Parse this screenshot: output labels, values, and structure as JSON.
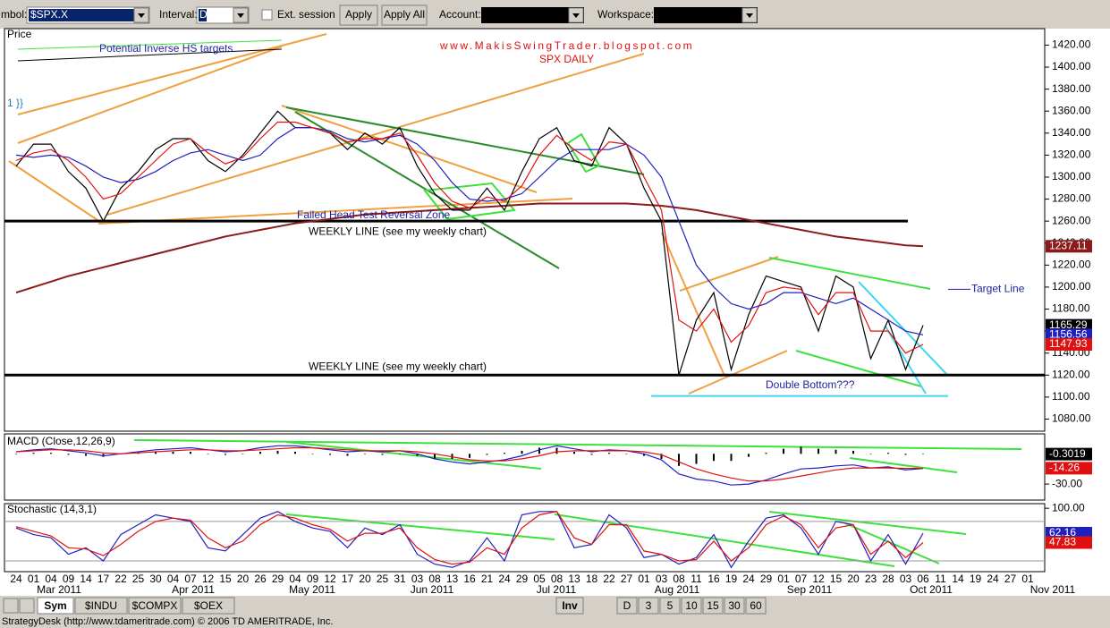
{
  "toolbar": {
    "symbol_label": "mbol:",
    "symbol": "$SPX.X",
    "interval_label": "Interval:",
    "interval": "D",
    "ext_session": "Ext. session",
    "apply": "Apply",
    "apply_all": "Apply All",
    "account_label": "Account:",
    "workspace_label": "Workspace:"
  },
  "chart_data": [
    {
      "type": "line",
      "title": "Price",
      "categories": [
        "24",
        "01",
        "04",
        "09",
        "14",
        "17",
        "22",
        "25",
        "30",
        "04",
        "07",
        "12",
        "15",
        "20",
        "26",
        "29",
        "04",
        "09",
        "12",
        "17",
        "20",
        "25",
        "31",
        "03",
        "08",
        "13",
        "16",
        "21",
        "24",
        "29",
        "05",
        "08",
        "13",
        "18",
        "22",
        "27",
        "01",
        "03",
        "08",
        "11",
        "16",
        "19",
        "24",
        "29",
        "01",
        "07",
        "12",
        "15",
        "20",
        "23",
        "28",
        "03",
        "06",
        "11",
        "14",
        "19",
        "24",
        "27",
        "01"
      ],
      "month_labels": [
        "Mar 2011",
        "Apr 2011",
        "May 2011",
        "Jun 2011",
        "Jul 2011",
        "Aug 2011",
        "Sep 2011",
        "Oct 2011",
        "Nov 2011"
      ],
      "ylim": [
        1069,
        1435
      ],
      "yticks": [
        {
          "value": 1080,
          "label": "1080.00"
        },
        {
          "value": 1100,
          "label": "1100.00"
        },
        {
          "value": 1120,
          "label": "1120.00"
        },
        {
          "value": 1140,
          "label": "1140.00"
        },
        {
          "value": 1160,
          "label": "1160.00"
        },
        {
          "value": 1180,
          "label": "1180.00"
        },
        {
          "value": 1200,
          "label": "1200.00"
        },
        {
          "value": 1220,
          "label": "1220.00"
        },
        {
          "value": 1240,
          "label": "1240.00"
        },
        {
          "value": 1260,
          "label": "1260.00"
        },
        {
          "value": 1280,
          "label": "1280.00"
        },
        {
          "value": 1300,
          "label": "1300.00"
        },
        {
          "value": 1320,
          "label": "1320.00"
        },
        {
          "value": 1340,
          "label": "1340.00"
        },
        {
          "value": 1360,
          "label": "1360.00"
        },
        {
          "value": 1380,
          "label": "1380.00"
        },
        {
          "value": 1400,
          "label": "1400.00"
        },
        {
          "value": 1420,
          "label": "1420.00"
        }
      ],
      "series": [
        {
          "color": "#8b1a1a",
          "label_last": true,
          "values": [
            1195,
            1200,
            1205,
            1210,
            1214,
            1218,
            1222,
            1226,
            1230,
            1234,
            1238,
            1242,
            1246,
            1249,
            1252,
            1255,
            1258,
            1260,
            1262,
            1264,
            1266,
            1267,
            1268,
            1269,
            1270,
            1271,
            1272,
            1273,
            1274,
            1275,
            1276,
            1276,
            1276,
            1276,
            1276,
            1276,
            1275,
            1274,
            1272,
            1270,
            1267,
            1264,
            1261,
            1258,
            1255,
            1252,
            1249,
            1246,
            1244,
            1242,
            1240,
            1238,
            1237.11,
            null,
            null,
            null,
            null,
            null,
            null
          ]
        },
        {
          "color": "#000000",
          "label_last": true,
          "values": [
            1310,
            1330,
            1330,
            1305,
            1290,
            1260,
            1290,
            1305,
            1325,
            1335,
            1335,
            1315,
            1305,
            1320,
            1340,
            1360,
            1345,
            1345,
            1340,
            1325,
            1340,
            1330,
            1345,
            1310,
            1285,
            1270,
            1270,
            1290,
            1270,
            1305,
            1335,
            1345,
            1315,
            1310,
            1345,
            1330,
            1290,
            1260,
            1120,
            1170,
            1195,
            1125,
            1175,
            1210,
            1205,
            1200,
            1160,
            1210,
            1200,
            1135,
            1170,
            1125,
            1165.29,
            null,
            null,
            null,
            null,
            null,
            null
          ]
        },
        {
          "color": "#1f1fbf",
          "label_last": true,
          "values": [
            1320,
            1318,
            1320,
            1318,
            1310,
            1300,
            1295,
            1298,
            1305,
            1315,
            1322,
            1325,
            1320,
            1315,
            1320,
            1335,
            1345,
            1345,
            1342,
            1335,
            1332,
            1335,
            1338,
            1330,
            1315,
            1295,
            1280,
            1278,
            1280,
            1285,
            1300,
            1315,
            1325,
            1325,
            1325,
            1330,
            1320,
            1300,
            1260,
            1220,
            1200,
            1185,
            1180,
            1185,
            1195,
            1195,
            1190,
            1185,
            1190,
            1180,
            1170,
            1160,
            1156.56,
            null,
            null,
            null,
            null,
            null,
            null
          ]
        },
        {
          "color": "#e01010",
          "label_last": true,
          "values": [
            1315,
            1322,
            1325,
            1315,
            1300,
            1280,
            1285,
            1300,
            1315,
            1330,
            1335,
            1322,
            1312,
            1318,
            1335,
            1350,
            1350,
            1345,
            1340,
            1332,
            1335,
            1335,
            1340,
            1320,
            1295,
            1278,
            1272,
            1282,
            1278,
            1292,
            1320,
            1338,
            1325,
            1315,
            1332,
            1330,
            1300,
            1270,
            1170,
            1160,
            1180,
            1150,
            1165,
            1195,
            1200,
            1198,
            1175,
            1195,
            1195,
            1160,
            1160,
            1140,
            1147.93,
            null,
            null,
            null,
            null,
            null,
            null
          ]
        }
      ],
      "hlines": [
        {
          "value": 1260,
          "color": "#000000",
          "label": "WEEKLY LINE (see my weekly chart)"
        },
        {
          "value": 1120,
          "color": "#000000",
          "label": "WEEKLY LINE (see my weekly chart)"
        },
        {
          "value": 1101,
          "color": "#40d8f0",
          "label": "Double Bottom???"
        },
        {
          "value": 1198,
          "color": "#1f1f9f",
          "label": "Target Line"
        }
      ],
      "annotations": [
        "www.MakisSwingTrader.blogspot.com",
        "SPX DAILY",
        "Potential Inverse HS targets",
        "Failed Head Test Reversal Zone",
        "1 }}"
      ]
    },
    {
      "type": "macd",
      "title": "MACD (Close,12,26,9)",
      "ylim": [
        -45,
        18
      ],
      "yticks": [
        {
          "value": -30,
          "label": "-30.00"
        }
      ],
      "series": [
        {
          "color": "#1f1fbf",
          "values": [
            2,
            4,
            5,
            3,
            1,
            -2,
            0,
            2,
            4,
            5,
            6,
            4,
            2,
            3,
            6,
            8,
            8,
            6,
            4,
            2,
            3,
            2,
            3,
            0,
            -5,
            -8,
            -10,
            -8,
            -6,
            -2,
            4,
            8,
            5,
            2,
            4,
            3,
            0,
            -6,
            -20,
            -25,
            -27,
            -31,
            -30,
            -26,
            -20,
            -15,
            -14,
            -12,
            -11,
            -14,
            -13,
            -16,
            -14.56,
            null,
            null,
            null,
            null,
            null,
            null
          ]
        },
        {
          "color": "#e01010",
          "label_last": true,
          "values": [
            2,
            3,
            4,
            4,
            3,
            1,
            0,
            1,
            2,
            3,
            4,
            4,
            3,
            3,
            4,
            5,
            6,
            6,
            5,
            4,
            3,
            3,
            3,
            2,
            0,
            -3,
            -6,
            -7,
            -7,
            -5,
            -2,
            2,
            3,
            3,
            3,
            3,
            2,
            -1,
            -8,
            -15,
            -20,
            -24,
            -27,
            -27,
            -25,
            -22,
            -19,
            -16,
            -14,
            -14,
            -14,
            -14.5,
            -14.26,
            null,
            null,
            null,
            null,
            null,
            null
          ]
        }
      ],
      "histogram": {
        "color": "#000000",
        "label_last": true,
        "values": [
          0,
          1,
          1,
          -1,
          -2,
          -3,
          0,
          1,
          2,
          2,
          2,
          0,
          -1,
          0,
          2,
          3,
          2,
          0,
          -1,
          -2,
          0,
          -1,
          0,
          -2,
          -5,
          -5,
          -4,
          -1,
          1,
          3,
          6,
          6,
          2,
          -1,
          1,
          0,
          -2,
          -5,
          -12,
          -10,
          -7,
          -7,
          -3,
          1,
          5,
          7,
          5,
          4,
          3,
          0,
          1,
          -1,
          -0.3019,
          null,
          null,
          null,
          null,
          null,
          null
        ]
      }
    },
    {
      "type": "line",
      "title": "Stochastic (14,3,1)",
      "ylim": [
        5,
        107
      ],
      "yticks": [
        {
          "value": 100,
          "label": "100.00"
        }
      ],
      "levels": [
        80,
        20
      ],
      "series": [
        {
          "color": "#1f1fbf",
          "label_last": true,
          "values": [
            70,
            60,
            55,
            30,
            40,
            20,
            60,
            75,
            90,
            85,
            80,
            40,
            35,
            60,
            85,
            95,
            80,
            70,
            65,
            40,
            70,
            60,
            75,
            30,
            15,
            10,
            20,
            55,
            20,
            90,
            95,
            95,
            40,
            45,
            90,
            70,
            25,
            30,
            15,
            25,
            60,
            10,
            50,
            85,
            90,
            70,
            30,
            80,
            75,
            20,
            60,
            15,
            62.16,
            null,
            null,
            null,
            null,
            null,
            null
          ]
        },
        {
          "color": "#e01010",
          "label_last": true,
          "values": [
            72,
            65,
            58,
            40,
            38,
            28,
            45,
            65,
            80,
            85,
            82,
            55,
            40,
            50,
            75,
            90,
            85,
            75,
            68,
            50,
            62,
            62,
            70,
            40,
            22,
            15,
            18,
            40,
            30,
            70,
            90,
            95,
            55,
            45,
            75,
            75,
            35,
            30,
            20,
            22,
            50,
            20,
            40,
            75,
            88,
            75,
            40,
            70,
            75,
            30,
            50,
            25,
            47.83,
            null,
            null,
            null,
            null,
            null,
            null
          ]
        }
      ]
    }
  ],
  "tabs": {
    "left": [
      "Sym",
      "$INDU",
      "$COMPX",
      "$OEX"
    ],
    "right": [
      "Inv",
      "D",
      "3",
      "5",
      "10",
      "15",
      "30",
      "60"
    ]
  },
  "status": "StrategyDesk (http://www.tdameritrade.com) © 2006 TD AMERITRADE, Inc."
}
